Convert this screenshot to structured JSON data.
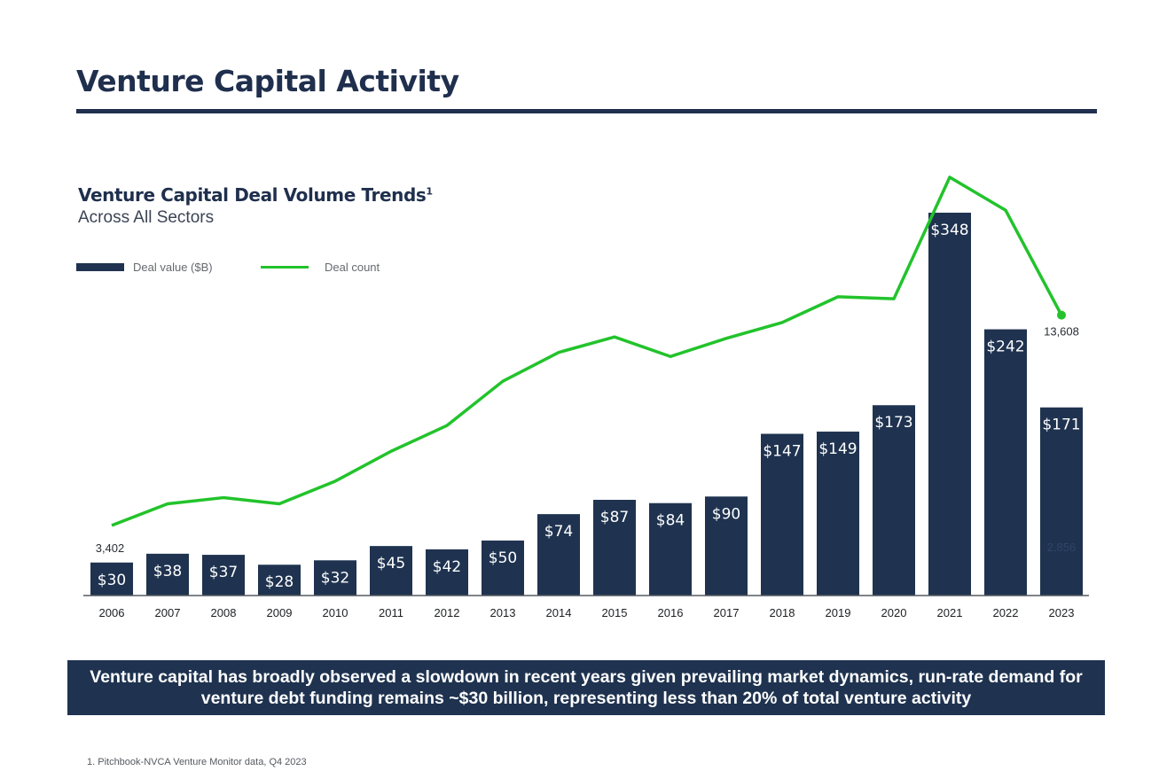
{
  "page": {
    "title": "Venture Capital Activity",
    "callout": "Venture capital has broadly observed a slowdown in recent years given prevailing market dynamics, run-rate demand for venture debt funding remains ~$30 billion, representing less than 20% of total venture activity",
    "footnote": "1.  Pitchbook-NVCA Venture Monitor data, Q4 2023"
  },
  "colors": {
    "heading": "#1f2f4d",
    "bar": "#1f3350",
    "line": "#22c32b",
    "bar_label": "#ffffff"
  },
  "chart_data": {
    "type": "bar",
    "title": "Venture Capital Deal Volume Trends",
    "title_superscript": "1",
    "subtitle": "Across All Sectors",
    "legend_position": "top-left",
    "grid": false,
    "categories": [
      "2006",
      "2007",
      "2008",
      "2009",
      "2010",
      "2011",
      "2012",
      "2013",
      "2014",
      "2015",
      "2016",
      "2017",
      "2018",
      "2019",
      "2020",
      "2021",
      "2022",
      "2023"
    ],
    "series": [
      {
        "name": "Deal value ($B)",
        "type": "bar",
        "values": [
          30,
          38,
          37,
          28,
          32,
          45,
          42,
          50,
          74,
          87,
          84,
          90,
          147,
          149,
          173,
          348,
          242,
          171
        ],
        "labels": [
          "$30",
          "$38",
          "$37",
          "$28",
          "$32",
          "$45",
          "$42",
          "$50",
          "$74",
          "$87",
          "$84",
          "$90",
          "$147",
          "$149",
          "$173",
          "$348",
          "$242",
          "$171"
        ]
      },
      {
        "name": "Deal count",
        "type": "line",
        "values": [
          3402,
          4450,
          4750,
          4450,
          5550,
          7000,
          8250,
          10400,
          11800,
          12550,
          11600,
          12480,
          13250,
          14500,
          14400,
          20300,
          18700,
          13608
        ],
        "labeled_points": [
          {
            "index": 0,
            "label": "3,402"
          },
          {
            "index": 17,
            "label": "13,608"
          }
        ]
      }
    ],
    "ylim_bars": [
      0,
      348
    ],
    "ylim_line": [
      0,
      20300
    ],
    "faint_annotation": "2,856"
  }
}
